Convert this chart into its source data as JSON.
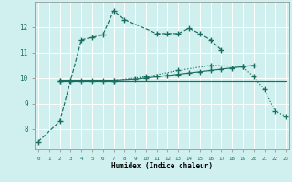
{
  "xlabel": "Humidex (Indice chaleur)",
  "background_color": "#cff0ee",
  "grid_color": "#ffffff",
  "line_color": "#1a6e60",
  "curve1_x": [
    0,
    2,
    3,
    4,
    5,
    6,
    7,
    8,
    11,
    12,
    13,
    14,
    15,
    16,
    17
  ],
  "curve1_y": [
    7.5,
    8.3,
    9.9,
    11.5,
    11.6,
    11.7,
    12.65,
    12.3,
    11.75,
    11.75,
    11.75,
    11.95,
    11.75,
    11.5,
    11.1
  ],
  "curve2_x": [
    2,
    3,
    4,
    5,
    6,
    7,
    9,
    10,
    11,
    12,
    13,
    14,
    15,
    16,
    17,
    18,
    19,
    20
  ],
  "curve2_y": [
    9.9,
    9.9,
    9.9,
    9.9,
    9.9,
    9.9,
    9.95,
    10.0,
    10.05,
    10.1,
    10.15,
    10.2,
    10.25,
    10.3,
    10.35,
    10.4,
    10.45,
    10.5
  ],
  "curve3_x": [
    2,
    23
  ],
  "curve3_y": [
    9.9,
    9.9
  ],
  "curve4_x": [
    2,
    7,
    10,
    13,
    16,
    19,
    20,
    21,
    22,
    23
  ],
  "curve4_y": [
    9.9,
    9.9,
    10.05,
    10.3,
    10.5,
    10.45,
    10.05,
    9.55,
    8.7,
    8.5
  ],
  "xlim": [
    -0.3,
    23.3
  ],
  "ylim": [
    7.2,
    13.0
  ],
  "yticks": [
    8,
    9,
    10,
    11,
    12
  ],
  "xticks": [
    0,
    1,
    2,
    3,
    4,
    5,
    6,
    7,
    8,
    9,
    10,
    11,
    12,
    13,
    14,
    15,
    16,
    17,
    18,
    19,
    20,
    21,
    22,
    23
  ]
}
